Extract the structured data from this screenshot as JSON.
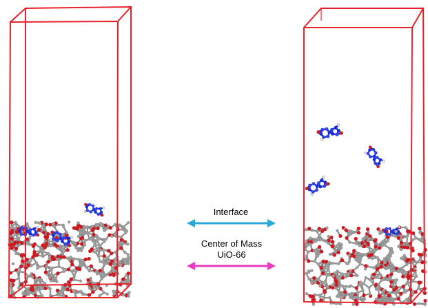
{
  "legend": {
    "interface_label": "Interface",
    "com_label_line1": "Center of Mass",
    "com_label_line2": "UiO-66"
  },
  "colors": {
    "box": "#e8202a",
    "interface_arrow": "#2aa7d9",
    "com_arrow": "#e83cc0",
    "oxygen": "#d0161e",
    "carbon": "#9c9c9c",
    "nitrogen": "#1a2fd6",
    "hydrogen": "#e6e6e6"
  },
  "simulation_boxes": [
    {
      "name": "initial-state-box"
    },
    {
      "name": "final-state-box"
    }
  ]
}
